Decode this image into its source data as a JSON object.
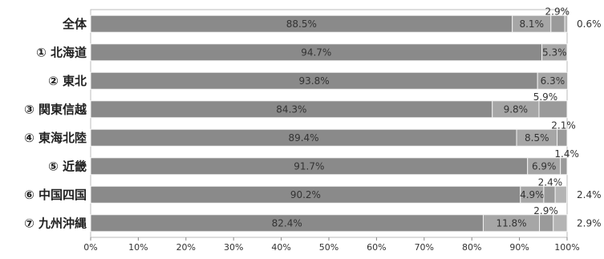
{
  "chart_data": {
    "type": "bar",
    "orientation": "horizontal",
    "stacked": true,
    "percent_stacked": true,
    "categories": [
      "全体",
      "① 北海道",
      "② 東北",
      "③ 関東信越",
      "④ 東海北陸",
      "⑤ 近畿",
      "⑥ 中国四国",
      "⑦ 九州沖縄"
    ],
    "series": [
      {
        "values": [
          88.5,
          94.7,
          93.8,
          84.3,
          89.4,
          91.7,
          90.2,
          82.4
        ],
        "color": "#8a8a8a"
      },
      {
        "values": [
          8.1,
          5.3,
          6.3,
          9.8,
          8.5,
          6.9,
          4.9,
          11.8
        ],
        "color": "#a6a6a6"
      },
      {
        "values": [
          2.9,
          0,
          0,
          5.9,
          2.1,
          1.4,
          2.4,
          2.9
        ],
        "color": "#9a9a9a"
      },
      {
        "values": [
          0.6,
          0,
          0,
          0,
          0,
          0,
          2.4,
          2.9
        ],
        "color": "#b4b4b4"
      }
    ],
    "data_labels": [
      [
        "88.5%",
        "8.1%",
        "2.9%",
        "0.6%"
      ],
      [
        "94.7%",
        "5.3%",
        "",
        ""
      ],
      [
        "93.8%",
        "6.3%",
        "",
        ""
      ],
      [
        "84.3%",
        "9.8%",
        "5.9%",
        ""
      ],
      [
        "89.4%",
        "8.5%",
        "2.1%",
        ""
      ],
      [
        "91.7%",
        "6.9%",
        "1.4%",
        ""
      ],
      [
        "90.2%",
        "4.9%",
        "2.4%",
        "2.4%"
      ],
      [
        "82.4%",
        "11.8%",
        "2.9%",
        "2.9%"
      ]
    ],
    "xlim": [
      0,
      100
    ],
    "x_ticks": [
      "0%",
      "10%",
      "20%",
      "30%",
      "40%",
      "50%",
      "60%",
      "70%",
      "80%",
      "90%",
      "100%"
    ],
    "grid": false,
    "legend": "none"
  }
}
